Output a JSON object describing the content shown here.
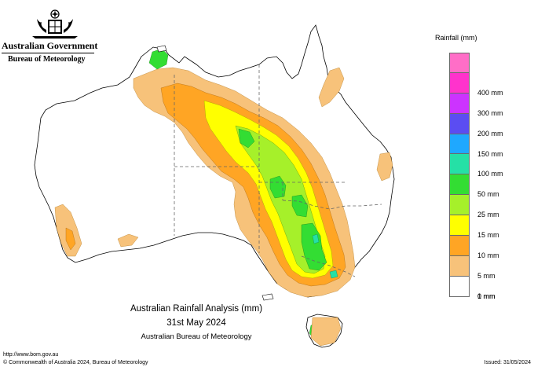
{
  "header": {
    "gov_name": "Australian Government",
    "agency": "Bureau of Meteorology"
  },
  "legend": {
    "title": "Rainfall (mm)",
    "bands": [
      {
        "label": "",
        "color": "#ff6ec7"
      },
      {
        "label": "400 mm",
        "color": "#ff33cc"
      },
      {
        "label": "300 mm",
        "color": "#cc33ff"
      },
      {
        "label": "200 mm",
        "color": "#5b4df2"
      },
      {
        "label": "150 mm",
        "color": "#1fa8ff"
      },
      {
        "label": "100 mm",
        "color": "#25e0a6"
      },
      {
        "label": "50 mm",
        "color": "#33dd33"
      },
      {
        "label": "25 mm",
        "color": "#a6f02a"
      },
      {
        "label": "15 mm",
        "color": "#ffff00"
      },
      {
        "label": "10 mm",
        "color": "#ffa524"
      },
      {
        "label": "5 mm",
        "color": "#f7c27a"
      },
      {
        "label": "1 mm",
        "color": "#ffffff"
      }
    ],
    "bottom_label": "0 mm"
  },
  "caption": {
    "line1": "Australian Rainfall Analysis (mm)",
    "line2": "31st May 2024",
    "line3": "Australian Bureau of Meteorology"
  },
  "footer": {
    "url": "http://www.bom.gov.au",
    "copyright": "© Commonwealth of Australia 2024, Bureau of Meteorology",
    "issued": "Issued: 31/05/2024"
  }
}
